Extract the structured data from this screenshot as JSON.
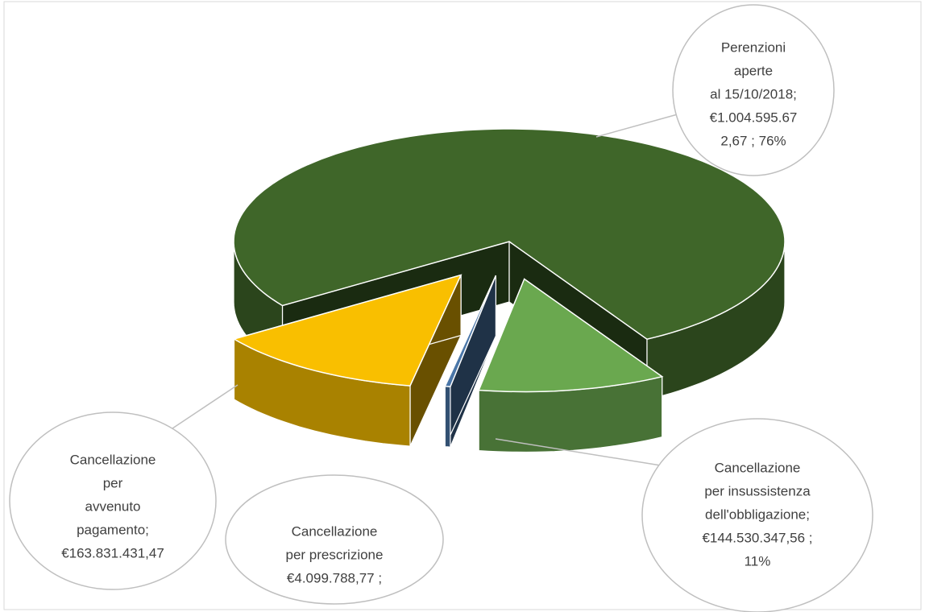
{
  "chart_data": {
    "type": "pie3d",
    "categories": [
      "Perenzioni aperte al 15/10/2018",
      "Cancellazione per avvenuto pagamento",
      "Cancellazione per prescrizione",
      "Cancellazione per insussistenza dell'obbligazione"
    ],
    "values": [
      1004595672.67,
      163831431.47,
      4099788.77,
      144530347.56
    ],
    "value_labels": [
      [
        "Perenzioni",
        "aperte",
        "al 15/10/2018;",
        "€1.004.595.67",
        "2,67 ; 76%"
      ],
      [
        "Cancellazione",
        "per",
        "avvenuto",
        "pagamento;",
        "€163.831.431,47"
      ],
      [
        "Cancellazione",
        "per prescrizione",
        " €4.099.788,77 ;"
      ],
      [
        "Cancellazione",
        "per insussistenza",
        "dell'obbligazione;",
        "€144.530.347,56 ;",
        "11%"
      ]
    ],
    "colors": [
      "#3f6629",
      "#f9bf00",
      "#4a76a8",
      "#6aa84f"
    ]
  }
}
